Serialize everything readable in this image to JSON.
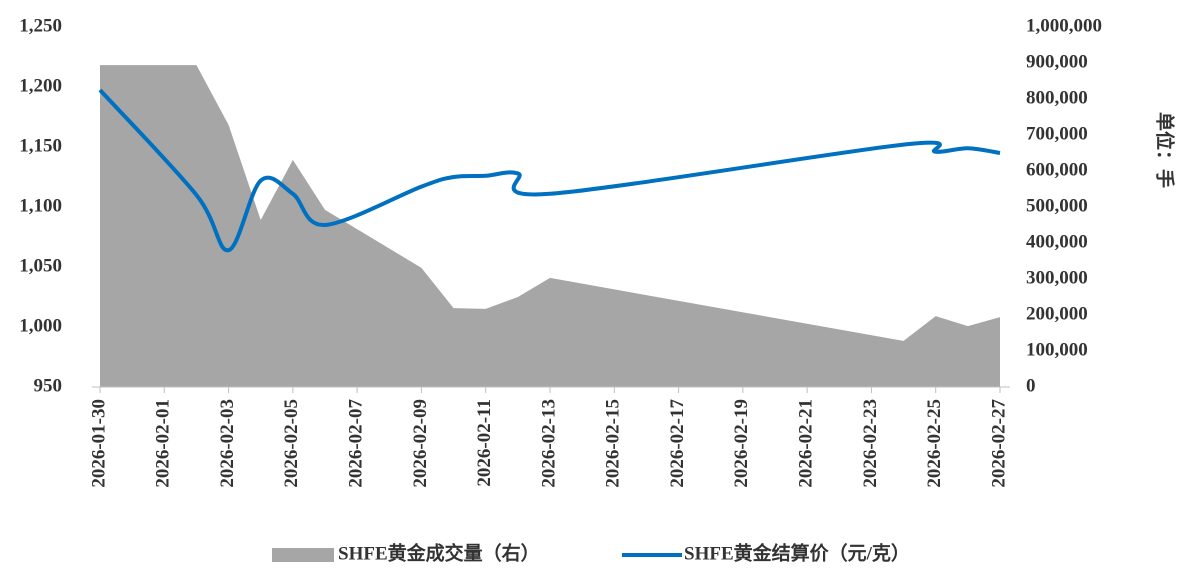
{
  "chart_data": {
    "type": "combo",
    "x": [
      "2026-01-30",
      "2026-02-02",
      "2026-02-03",
      "2026-02-04",
      "2026-02-05",
      "2026-02-06",
      "2026-02-09",
      "2026-02-10",
      "2026-02-11",
      "2026-02-12",
      "2026-02-13",
      "2026-02-24",
      "2026-02-25",
      "2026-02-26",
      "2026-02-27"
    ],
    "xlim": [
      "2026-01-30",
      "2026-02-27"
    ],
    "xticks": [
      "2026-01-30",
      "2026-02-01",
      "2026-02-03",
      "2026-02-05",
      "2026-02-07",
      "2026-02-09",
      "2026-02-11",
      "2026-02-13",
      "2026-02-15",
      "2026-02-17",
      "2026-02-19",
      "2026-02-21",
      "2026-02-23",
      "2026-02-25",
      "2026-02-27"
    ],
    "series": [
      {
        "name": "SHFE黄金成交量（右）",
        "type": "area",
        "axis": "y2",
        "color": "#a6a6a6",
        "values": [
          894000,
          894000,
          728000,
          464000,
          631000,
          492000,
          331000,
          219000,
          217000,
          250000,
          303000,
          128000,
          197000,
          169000,
          194000
        ]
      },
      {
        "name": "SHFE黄金结算价（元/克）",
        "type": "line",
        "axis": "y",
        "color": "#0070c0",
        "values": [
          1197.5,
          1110,
          1064,
          1122,
          1111,
          1085,
          1117,
          1125,
          1126,
          1128,
          1111,
          1152,
          1146,
          1149,
          1145
        ]
      }
    ],
    "ylim": [
      950,
      1250
    ],
    "yticks": [
      950,
      {
        "value": 1000,
        "label": "1,000"
      },
      {
        "value": 1050,
        "label": "1,050"
      },
      {
        "value": 1100,
        "label": "1,100"
      },
      {
        "value": 1150,
        "label": "1,150"
      },
      {
        "value": 1200,
        "label": "1,200"
      },
      {
        "value": 1250,
        "label": "1,250"
      }
    ],
    "y2lim": [
      0,
      1000000
    ],
    "y2ticks": [
      0,
      {
        "value": 100000,
        "label": "100,000"
      },
      {
        "value": 200000,
        "label": "200,000"
      },
      {
        "value": 300000,
        "label": "300,000"
      },
      {
        "value": 400000,
        "label": "400,000"
      },
      {
        "value": 500000,
        "label": "500,000"
      },
      {
        "value": 600000,
        "label": "600,000"
      },
      {
        "value": 700000,
        "label": "700,000"
      },
      {
        "value": 800000,
        "label": "800,000"
      },
      {
        "value": 900000,
        "label": "900,000"
      },
      {
        "value": 1000000,
        "label": "1,000,000"
      }
    ],
    "y2label": "单位：手",
    "legend": "bottom"
  }
}
